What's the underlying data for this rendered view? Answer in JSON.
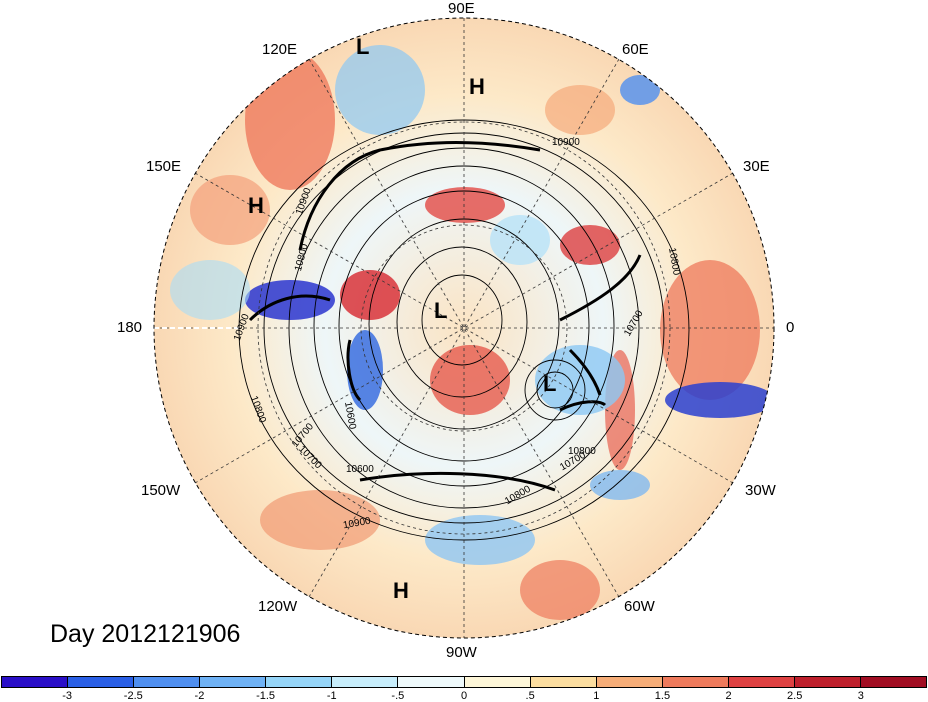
{
  "title": "Day 2012121906",
  "meridian_labels": {
    "m90e": "90E",
    "m120e": "120E",
    "m60e": "60E",
    "m150e": "150E",
    "m30e": "30E",
    "m180": "180",
    "m0": "0",
    "m150w": "150W",
    "m30w": "30W",
    "m120w": "120W",
    "m60w": "60W",
    "m90w": "90W"
  },
  "pressure_centers": [
    "L",
    "H",
    "H",
    "L",
    "L",
    "H"
  ],
  "contour_labels": [
    "10900",
    "10900",
    "10800",
    "10900",
    "10800",
    "10700",
    "10800",
    "10700",
    "10600",
    "10700",
    "10800",
    "10900",
    "10800",
    "10700",
    "10600"
  ],
  "colorbar": {
    "ticks": [
      "-3",
      "-2.5",
      "-2",
      "-1.5",
      "-1",
      "-.5",
      "0",
      ".5",
      "1",
      "1.5",
      "2",
      "2.5",
      "3"
    ],
    "colors": [
      "#2a0fc8",
      "#2a5fe6",
      "#4f8ff0",
      "#6fb2f5",
      "#96d5f8",
      "#c7edfb",
      "#eef9fb",
      "#fdf6d8",
      "#fbdda0",
      "#f6ad78",
      "#ee7a5c",
      "#de4142",
      "#be1f2c",
      "#a10d22"
    ]
  }
}
